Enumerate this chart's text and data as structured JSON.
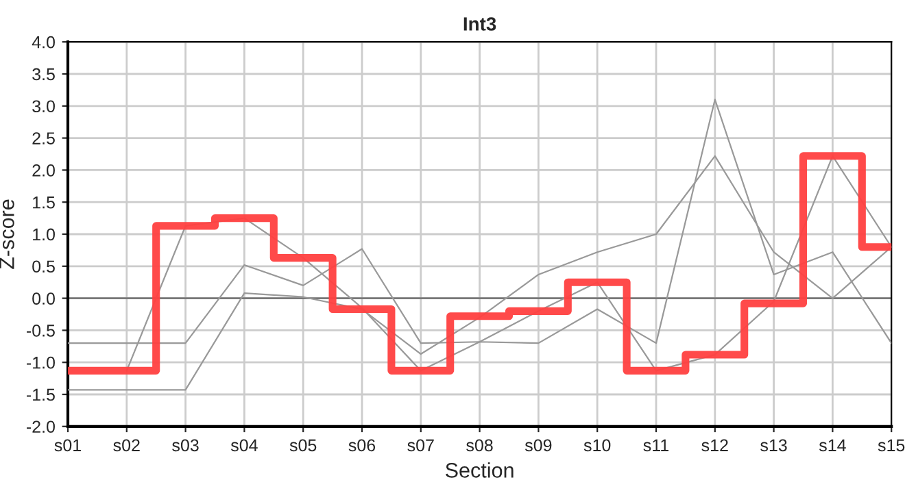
{
  "chart_data": {
    "type": "line",
    "title": "Int3",
    "xlabel": "Section",
    "ylabel": "Z-score",
    "categories": [
      "s01",
      "s02",
      "s03",
      "s04",
      "s05",
      "s06",
      "s07",
      "s08",
      "s09",
      "s10",
      "s11",
      "s12",
      "s13",
      "s14",
      "s15"
    ],
    "series": [
      {
        "color": "#999999",
        "values": [
          -0.7,
          -0.7,
          -0.7,
          0.52,
          0.2,
          0.77,
          -0.7,
          -0.68,
          -0.7,
          -0.17,
          -0.7,
          3.1,
          0.37,
          0.72,
          -0.7
        ]
      },
      {
        "color": "#999999",
        "values": [
          null,
          -1.13,
          1.13,
          1.25,
          0.63,
          -0.15,
          -1.13,
          -0.68,
          -0.2,
          0.25,
          -1.13,
          -0.88,
          -0.05,
          2.22,
          0.8
        ]
      },
      {
        "color": "#999999",
        "values": [
          -1.43,
          -1.43,
          -1.43,
          0.08,
          0.02,
          -0.17,
          -0.87,
          -0.3,
          0.37,
          0.72,
          1.0,
          2.22,
          0.72,
          0.0,
          0.8
        ]
      },
      {
        "type": "step",
        "color": "#ff4040",
        "values": [
          -1.13,
          -1.13,
          1.13,
          1.25,
          0.63,
          -0.17,
          -1.13,
          -0.28,
          -0.2,
          0.25,
          -1.13,
          -0.88,
          -0.08,
          2.22,
          0.8
        ]
      }
    ],
    "ylim": [
      -2,
      4
    ],
    "yticks": [
      {
        "value": -2,
        "label": "-2.0"
      },
      {
        "value": -1.5,
        "label": "-1.5"
      },
      {
        "value": -1,
        "label": "-1.0"
      },
      {
        "value": -0.5,
        "label": "-0.5"
      },
      {
        "value": 0,
        "label": "0.0"
      },
      {
        "value": 0.5,
        "label": "0.5"
      },
      {
        "value": 1,
        "label": "1.0"
      },
      {
        "value": 1.5,
        "label": "1.5"
      },
      {
        "value": 2,
        "label": "2.0"
      },
      {
        "value": 2.5,
        "label": "2.5"
      },
      {
        "value": 3,
        "label": "3.0"
      },
      {
        "value": 3.5,
        "label": "3.5"
      },
      {
        "value": 4,
        "label": "4.0"
      }
    ],
    "ref_lines": [
      {
        "axis": "y",
        "value": 0,
        "color": "#777777"
      }
    ],
    "grid": true
  }
}
